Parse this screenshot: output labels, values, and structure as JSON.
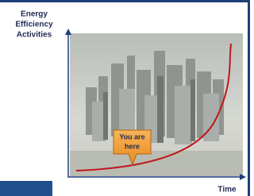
{
  "y_axis_label": [
    "Energy",
    "Efficiency",
    "Activities"
  ],
  "x_axis_label": "Time",
  "callout": [
    "You are",
    "here"
  ]
}
